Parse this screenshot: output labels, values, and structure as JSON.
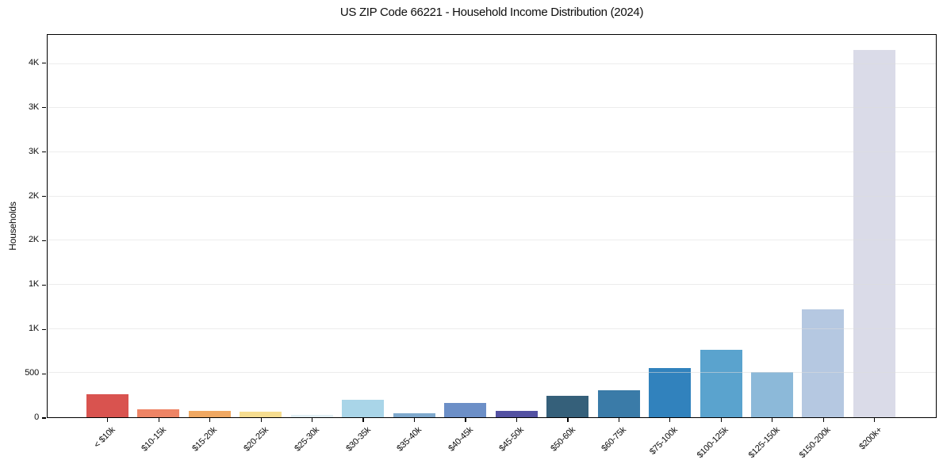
{
  "chart_data": {
    "type": "bar",
    "title": "US ZIP Code 66221 - Household Income Distribution (2024)",
    "xlabel": "",
    "ylabel": "Households",
    "categories": [
      "< $10k",
      "$10-15k",
      "$15-20k",
      "$20-25k",
      "$25-30k",
      "$30-35k",
      "$35-40k",
      "$40-45k",
      "$45-50k",
      "$50-60k",
      "$60-75k",
      "$75-100k",
      "$100-125k",
      "$125-150k",
      "$150-200k",
      "$200k+"
    ],
    "values": [
      265,
      90,
      70,
      60,
      30,
      195,
      45,
      160,
      70,
      245,
      310,
      560,
      760,
      510,
      1225,
      4160
    ],
    "colors": [
      "#d9534f",
      "#ee8465",
      "#f0a862",
      "#f6dd90",
      "#e2eff4",
      "#a9d5e8",
      "#7fa9cd",
      "#6c8fc7",
      "#5351a2",
      "#35607a",
      "#3a7ba8",
      "#3182bd",
      "#5aa3ce",
      "#8cb9d9",
      "#b5c8e1",
      "#dadbe8"
    ],
    "ylim": [
      0,
      4330
    ],
    "yticks": [
      {
        "v": 0,
        "label": "0"
      },
      {
        "v": 500,
        "label": "500"
      },
      {
        "v": 1000,
        "label": "1K"
      },
      {
        "v": 1500,
        "label": "1K"
      },
      {
        "v": 2000,
        "label": "2K"
      },
      {
        "v": 2500,
        "label": "2K"
      },
      {
        "v": 3000,
        "label": "3K"
      },
      {
        "v": 3500,
        "label": "3K"
      },
      {
        "v": 4000,
        "label": "4K"
      }
    ],
    "grid": "horizontal",
    "legend_position": "none"
  },
  "figure": {
    "background": "#ffffff",
    "frame_color": "#000000",
    "grid_color": "#e8e8e8",
    "grid_overlay_rgba": "rgba(220,220,220,0.55)",
    "text_color": "#111111"
  }
}
